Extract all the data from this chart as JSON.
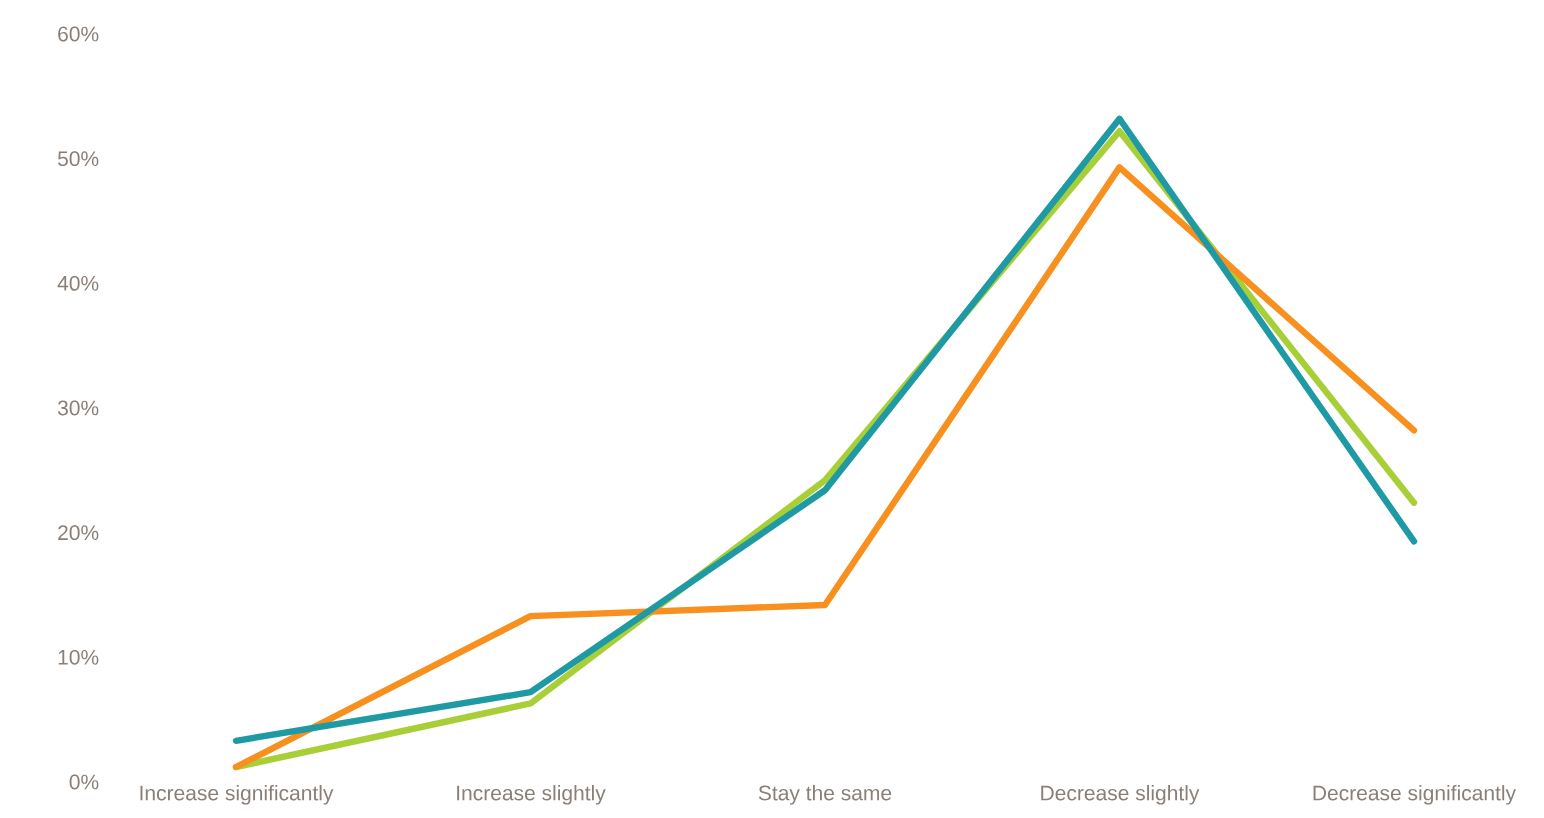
{
  "chart_data": {
    "type": "line",
    "categories": [
      "Increase significantly",
      "Increase slightly",
      "Stay the same",
      "Decrease slightly",
      "Decrease significantly"
    ],
    "series": [
      {
        "color": "#a8cf38",
        "values": [
          1.2,
          6.3,
          24.2,
          52.2,
          22.4
        ]
      },
      {
        "color": "#f7901e",
        "values": [
          1.2,
          13.3,
          14.2,
          49.3,
          28.2
        ]
      },
      {
        "color": "#1f9aa5",
        "values": [
          3.3,
          7.2,
          23.4,
          53.2,
          19.3
        ]
      }
    ],
    "ylim": [
      0,
      60
    ],
    "yticks": [
      {
        "value": 0,
        "label": "0%"
      },
      {
        "value": 10,
        "label": "10%"
      },
      {
        "value": 20,
        "label": "20%"
      },
      {
        "value": 30,
        "label": "30%"
      },
      {
        "value": 40,
        "label": "40%"
      },
      {
        "value": 50,
        "label": "50%"
      },
      {
        "value": 60,
        "label": "60%"
      }
    ],
    "grid": false,
    "legend": false,
    "marker": "none",
    "line_style": "solid"
  }
}
